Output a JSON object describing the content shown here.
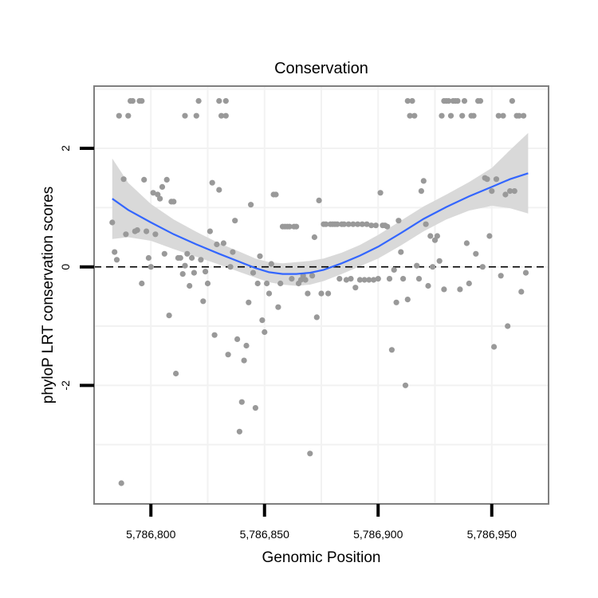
{
  "chart_data": {
    "type": "scatter",
    "title": "Conservation",
    "xlabel": "Genomic Position",
    "ylabel": "phyloP LRT conservation scores",
    "xlim": [
      5786775,
      5786975
    ],
    "ylim": [
      -4.0,
      3.05
    ],
    "x_ticks": [
      5786800,
      5786850,
      5786900,
      5786950
    ],
    "x_tick_labels": [
      "5,786,800",
      "5,786,850",
      "5,786,900",
      "5,786,950"
    ],
    "y_ticks": [
      -2,
      0,
      2
    ],
    "y_tick_labels": [
      "-2",
      "0",
      "2"
    ],
    "reference_line": {
      "y": 0,
      "style": "dashed"
    },
    "colors": {
      "points": "#999999",
      "smooth": "#3366ff",
      "ribbon": "#d9d9d9",
      "panel_border": "#7f7f7f",
      "grid": "#f2f2f2"
    },
    "points": [
      [
        5786783,
        0.75
      ],
      [
        5786784,
        0.25
      ],
      [
        5786785,
        0.12
      ],
      [
        5786786,
        2.55
      ],
      [
        5786787,
        -3.65
      ],
      [
        5786788,
        1.48
      ],
      [
        5786789,
        0.55
      ],
      [
        5786790,
        2.55
      ],
      [
        5786791,
        2.8
      ],
      [
        5786792,
        2.8
      ],
      [
        5786793,
        0.6
      ],
      [
        5786794,
        0.62
      ],
      [
        5786795,
        2.8
      ],
      [
        5786796,
        2.8
      ],
      [
        5786796,
        -0.28
      ],
      [
        5786797,
        1.47
      ],
      [
        5786798,
        0.6
      ],
      [
        5786799,
        0.15
      ],
      [
        5786800,
        0.0
      ],
      [
        5786801,
        1.25
      ],
      [
        5786802,
        0.55
      ],
      [
        5786803,
        1.22
      ],
      [
        5786804,
        1.15
      ],
      [
        5786805,
        1.35
      ],
      [
        5786806,
        0.22
      ],
      [
        5786807,
        1.47
      ],
      [
        5786808,
        -0.82
      ],
      [
        5786809,
        1.1
      ],
      [
        5786810,
        1.1
      ],
      [
        5786811,
        -1.8
      ],
      [
        5786812,
        0.15
      ],
      [
        5786813,
        0.15
      ],
      [
        5786814,
        -0.12
      ],
      [
        5786815,
        2.55
      ],
      [
        5786815,
        0.02
      ],
      [
        5786816,
        0.22
      ],
      [
        5786817,
        -0.32
      ],
      [
        5786818,
        0.15
      ],
      [
        5786819,
        -0.1
      ],
      [
        5786820,
        2.55
      ],
      [
        5786821,
        2.8
      ],
      [
        5786822,
        0.12
      ],
      [
        5786823,
        -0.58
      ],
      [
        5786824,
        -0.08
      ],
      [
        5786825,
        -0.28
      ],
      [
        5786826,
        0.6
      ],
      [
        5786827,
        1.42
      ],
      [
        5786828,
        -1.15
      ],
      [
        5786829,
        0.38
      ],
      [
        5786830,
        2.8
      ],
      [
        5786830,
        1.3
      ],
      [
        5786831,
        2.55
      ],
      [
        5786832,
        0.4
      ],
      [
        5786833,
        2.8
      ],
      [
        5786833,
        2.55
      ],
      [
        5786834,
        -1.48
      ],
      [
        5786835,
        0.0
      ],
      [
        5786836,
        0.25
      ],
      [
        5786837,
        0.78
      ],
      [
        5786838,
        -1.22
      ],
      [
        5786839,
        -2.78
      ],
      [
        5786840,
        -2.28
      ],
      [
        5786841,
        -1.58
      ],
      [
        5786842,
        -1.33
      ],
      [
        5786843,
        -0.6
      ],
      [
        5786844,
        1.05
      ],
      [
        5786845,
        -0.1
      ],
      [
        5786846,
        -2.38
      ],
      [
        5786847,
        -0.28
      ],
      [
        5786848,
        0.18
      ],
      [
        5786849,
        -0.9
      ],
      [
        5786850,
        -1.1
      ],
      [
        5786851,
        -0.28
      ],
      [
        5786852,
        -0.45
      ],
      [
        5786853,
        0.05
      ],
      [
        5786854,
        1.22
      ],
      [
        5786855,
        1.22
      ],
      [
        5786856,
        -0.68
      ],
      [
        5786857,
        -0.28
      ],
      [
        5786858,
        0.68
      ],
      [
        5786859,
        0.68
      ],
      [
        5786860,
        0.68
      ],
      [
        5786861,
        0.68
      ],
      [
        5786862,
        -0.2
      ],
      [
        5786863,
        0.68
      ],
      [
        5786864,
        0.68
      ],
      [
        5786865,
        -0.28
      ],
      [
        5786866,
        -0.22
      ],
      [
        5786867,
        -0.15
      ],
      [
        5786868,
        -0.22
      ],
      [
        5786869,
        -0.45
      ],
      [
        5786870,
        -3.15
      ],
      [
        5786871,
        -0.15
      ],
      [
        5786872,
        0.5
      ],
      [
        5786873,
        -0.85
      ],
      [
        5786874,
        1.12
      ],
      [
        5786875,
        -0.45
      ],
      [
        5786876,
        0.72
      ],
      [
        5786877,
        0.72
      ],
      [
        5786878,
        -0.45
      ],
      [
        5786879,
        0.72
      ],
      [
        5786880,
        0.72
      ],
      [
        5786881,
        0.72
      ],
      [
        5786882,
        0.72
      ],
      [
        5786883,
        -0.2
      ],
      [
        5786884,
        0.72
      ],
      [
        5786885,
        0.72
      ],
      [
        5786886,
        -0.22
      ],
      [
        5786887,
        0.72
      ],
      [
        5786888,
        -0.2
      ],
      [
        5786889,
        0.72
      ],
      [
        5786890,
        -0.35
      ],
      [
        5786891,
        0.72
      ],
      [
        5786892,
        -0.22
      ],
      [
        5786893,
        0.72
      ],
      [
        5786894,
        -0.22
      ],
      [
        5786895,
        0.72
      ],
      [
        5786896,
        -0.22
      ],
      [
        5786897,
        0.7
      ],
      [
        5786898,
        -0.22
      ],
      [
        5786899,
        0.7
      ],
      [
        5786900,
        -0.2
      ],
      [
        5786901,
        1.25
      ],
      [
        5786902,
        0.7
      ],
      [
        5786903,
        0.7
      ],
      [
        5786904,
        0.68
      ],
      [
        5786905,
        -0.2
      ],
      [
        5786906,
        -1.4
      ],
      [
        5786907,
        -0.05
      ],
      [
        5786908,
        -0.6
      ],
      [
        5786909,
        0.78
      ],
      [
        5786910,
        0.25
      ],
      [
        5786911,
        -0.2
      ],
      [
        5786912,
        -2.0
      ],
      [
        5786913,
        -0.55
      ],
      [
        5786913,
        2.8
      ],
      [
        5786914,
        2.55
      ],
      [
        5786915,
        2.8
      ],
      [
        5786916,
        2.55
      ],
      [
        5786917,
        0.02
      ],
      [
        5786918,
        -0.2
      ],
      [
        5786919,
        1.28
      ],
      [
        5786920,
        1.45
      ],
      [
        5786921,
        0.72
      ],
      [
        5786922,
        -0.32
      ],
      [
        5786923,
        0.52
      ],
      [
        5786924,
        0.0
      ],
      [
        5786925,
        0.45
      ],
      [
        5786926,
        0.52
      ],
      [
        5786927,
        0.1
      ],
      [
        5786928,
        2.55
      ],
      [
        5786929,
        2.8
      ],
      [
        5786929,
        -0.38
      ],
      [
        5786930,
        2.8
      ],
      [
        5786931,
        2.8
      ],
      [
        5786932,
        2.55
      ],
      [
        5786933,
        2.8
      ],
      [
        5786934,
        2.8
      ],
      [
        5786935,
        2.8
      ],
      [
        5786936,
        -0.38
      ],
      [
        5786937,
        2.55
      ],
      [
        5786938,
        2.8
      ],
      [
        5786939,
        0.4
      ],
      [
        5786940,
        -0.28
      ],
      [
        5786941,
        2.55
      ],
      [
        5786942,
        2.55
      ],
      [
        5786943,
        0.22
      ],
      [
        5786944,
        2.8
      ],
      [
        5786945,
        2.8
      ],
      [
        5786946,
        0.0
      ],
      [
        5786947,
        1.5
      ],
      [
        5786948,
        1.48
      ],
      [
        5786949,
        0.52
      ],
      [
        5786950,
        1.28
      ],
      [
        5786951,
        -1.35
      ],
      [
        5786952,
        1.48
      ],
      [
        5786953,
        2.55
      ],
      [
        5786954,
        -0.15
      ],
      [
        5786955,
        2.55
      ],
      [
        5786956,
        1.22
      ],
      [
        5786957,
        -1.0
      ],
      [
        5786958,
        1.28
      ],
      [
        5786959,
        2.8
      ],
      [
        5786960,
        1.28
      ],
      [
        5786961,
        2.55
      ],
      [
        5786962,
        2.55
      ],
      [
        5786963,
        -0.42
      ],
      [
        5786964,
        2.55
      ],
      [
        5786965,
        -0.1
      ]
    ],
    "smooth": {
      "x": [
        5786783,
        5786790,
        5786800,
        5786810,
        5786820,
        5786830,
        5786840,
        5786846,
        5786852,
        5786858,
        5786864,
        5786870,
        5786876,
        5786884,
        5786892,
        5786900,
        5786910,
        5786920,
        5786930,
        5786940,
        5786950,
        5786958,
        5786966
      ],
      "y": [
        1.15,
        0.96,
        0.75,
        0.55,
        0.38,
        0.22,
        0.07,
        -0.02,
        -0.09,
        -0.12,
        -0.12,
        -0.1,
        -0.05,
        0.06,
        0.19,
        0.34,
        0.57,
        0.81,
        1.01,
        1.19,
        1.35,
        1.48,
        1.58
      ],
      "lower": [
        0.47,
        0.5,
        0.44,
        0.3,
        0.17,
        0.04,
        -0.1,
        -0.18,
        -0.26,
        -0.3,
        -0.32,
        -0.3,
        -0.24,
        -0.12,
        0.01,
        0.14,
        0.36,
        0.6,
        0.8,
        0.95,
        1.03,
        0.99,
        0.9
      ],
      "upper": [
        1.83,
        1.42,
        1.06,
        0.8,
        0.59,
        0.4,
        0.24,
        0.14,
        0.08,
        0.06,
        0.08,
        0.1,
        0.14,
        0.24,
        0.37,
        0.54,
        0.78,
        1.02,
        1.22,
        1.43,
        1.67,
        1.97,
        2.26
      ]
    }
  }
}
